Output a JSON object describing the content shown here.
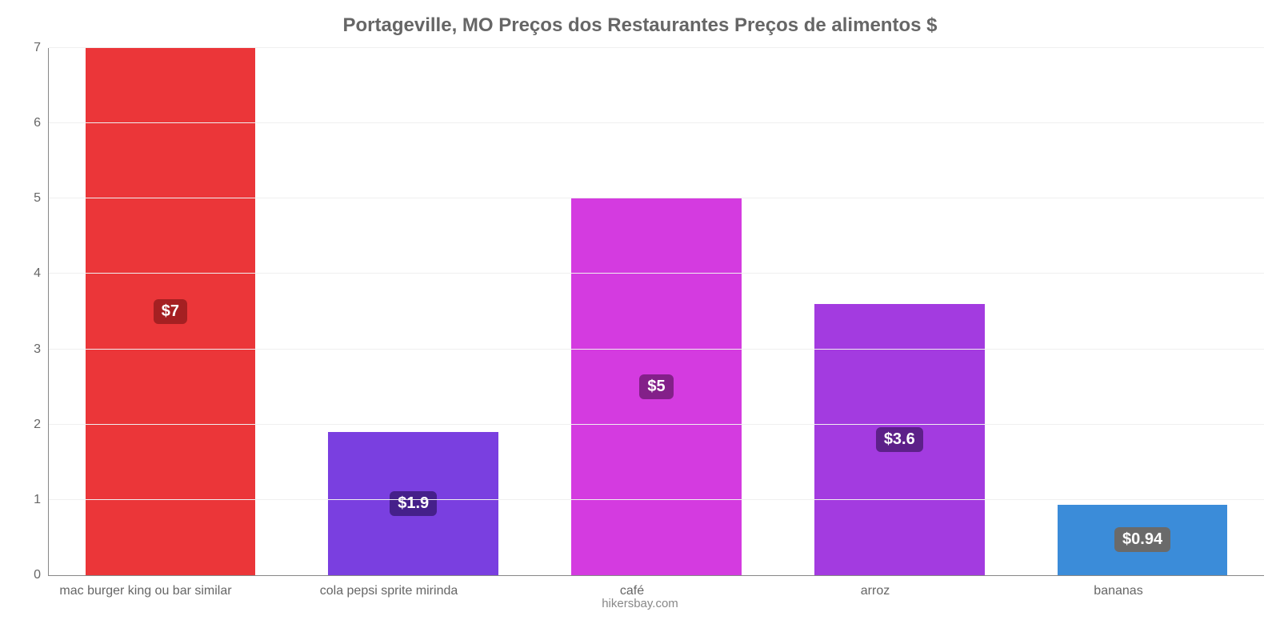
{
  "chart": {
    "type": "bar",
    "title": "Portageville, MO Preços dos Restaurantes Preços de alimentos $",
    "title_color": "#666666",
    "title_fontsize": 24,
    "footer": "hikersbay.com",
    "footer_color": "#888888",
    "background_color": "#ffffff",
    "axis_color": "#888888",
    "grid_color": "#f0f0f0",
    "tick_label_color": "#666666",
    "tick_fontsize": 16,
    "x_label_fontsize": 16,
    "x_label_color": "#666666",
    "ylim": [
      0,
      7
    ],
    "ytick_step": 1,
    "bar_width_pct": 70,
    "value_label_fontsize": 20,
    "value_label_color": "#ffffff",
    "bars": [
      {
        "category": "mac burger king ou bar similar",
        "value": 7,
        "display": "$7",
        "color": "#eb3639",
        "label_bg": "#a52022"
      },
      {
        "category": "cola pepsi sprite mirinda",
        "value": 1.9,
        "display": "$1.9",
        "color": "#7a3fe0",
        "label_bg": "#45208a"
      },
      {
        "category": "café",
        "value": 5,
        "display": "$5",
        "color": "#d43be0",
        "label_bg": "#832089"
      },
      {
        "category": "arroz",
        "value": 3.6,
        "display": "$3.6",
        "color": "#a33be0",
        "label_bg": "#5d2089"
      },
      {
        "category": "bananas",
        "value": 0.94,
        "display": "$0.94",
        "color": "#3b8cd9",
        "label_bg": "#6a6a6a"
      }
    ]
  }
}
